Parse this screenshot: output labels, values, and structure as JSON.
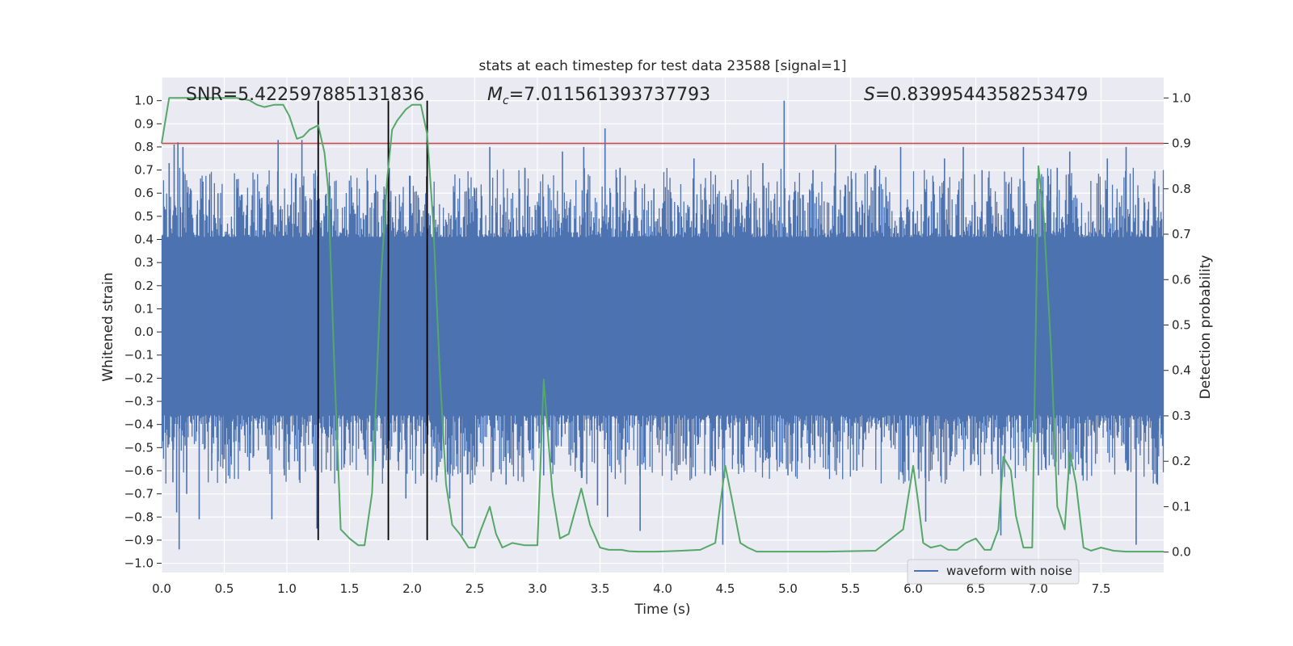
{
  "chart_data": {
    "type": "line",
    "title": "stats at each timestep for test data 23588 [signal=1]",
    "xlabel": "Time (s)",
    "ylabel": "Whitened strain",
    "y2label": "Detection probability",
    "xlim": [
      0,
      8
    ],
    "ylim": [
      -1.04,
      1.1
    ],
    "y2lim": [
      -0.045,
      1.045
    ],
    "xticks": [
      0.0,
      0.5,
      1.0,
      1.5,
      2.0,
      2.5,
      3.0,
      3.5,
      4.0,
      4.5,
      5.0,
      5.5,
      6.0,
      6.5,
      7.0,
      7.5
    ],
    "xtick_labels": [
      "0.0",
      "0.5",
      "1.0",
      "1.5",
      "2.0",
      "2.5",
      "3.0",
      "3.5",
      "4.0",
      "4.5",
      "5.0",
      "5.5",
      "6.0",
      "6.5",
      "7.0",
      "7.5"
    ],
    "yticks": [
      -1.0,
      -0.9,
      -0.8,
      -0.7,
      -0.6,
      -0.5,
      -0.4,
      -0.3,
      -0.2,
      -0.1,
      0.0,
      0.1,
      0.2,
      0.3,
      0.4,
      0.5,
      0.6,
      0.7,
      0.8,
      0.9,
      1.0
    ],
    "ytick_labels": [
      "−1.0",
      "−0.9",
      "−0.8",
      "−0.7",
      "−0.6",
      "−0.5",
      "−0.4",
      "−0.3",
      "−0.2",
      "−0.1",
      "0.0",
      "0.1",
      "0.2",
      "0.3",
      "0.4",
      "0.5",
      "0.6",
      "0.7",
      "0.8",
      "0.9",
      "1.0"
    ],
    "y2ticks": [
      0.0,
      0.1,
      0.2,
      0.3,
      0.4,
      0.5,
      0.6,
      0.7,
      0.8,
      0.9,
      1.0
    ],
    "y2tick_labels": [
      "0.0",
      "0.1",
      "0.2",
      "0.3",
      "0.4",
      "0.5",
      "0.6",
      "0.7",
      "0.8",
      "0.9",
      "1.0"
    ],
    "annotations": {
      "snr": "SNR=5.422597885131836",
      "mc_symbol": "M",
      "mc_subscript": "c",
      "mc_value": "=7.011561393737793",
      "s_symbol": "S",
      "s_value": "=0.8399544358253479"
    },
    "threshold": {
      "axis": "right",
      "value": 0.9,
      "color": "#c44e52"
    },
    "vlines": [
      1.25,
      1.81,
      2.12
    ],
    "vline_color": "#000000",
    "vline_range": [
      -0.9,
      1.0
    ],
    "waveform": {
      "name": "waveform with noise",
      "color": "#4c72b0",
      "dense_envelope": [
        -0.36,
        0.41
      ],
      "spikes": [
        {
          "t": 0.03,
          "v": 0.53
        },
        {
          "t": 0.05,
          "v": -0.5
        },
        {
          "t": 0.06,
          "v": 0.73
        },
        {
          "t": 0.09,
          "v": -0.65
        },
        {
          "t": 0.1,
          "v": 0.81
        },
        {
          "t": 0.12,
          "v": -0.78
        },
        {
          "t": 0.13,
          "v": 0.82
        },
        {
          "t": 0.14,
          "v": -0.94
        },
        {
          "t": 0.17,
          "v": 0.8
        },
        {
          "t": 0.2,
          "v": -0.7
        },
        {
          "t": 0.23,
          "v": 0.62
        },
        {
          "t": 0.3,
          "v": -0.81
        },
        {
          "t": 0.33,
          "v": 0.65
        },
        {
          "t": 0.4,
          "v": -0.6
        },
        {
          "t": 0.45,
          "v": 0.6
        },
        {
          "t": 0.5,
          "v": -0.55
        },
        {
          "t": 0.6,
          "v": 0.66
        },
        {
          "t": 0.7,
          "v": -0.6
        },
        {
          "t": 0.8,
          "v": 0.58
        },
        {
          "t": 0.88,
          "v": -0.81
        },
        {
          "t": 0.93,
          "v": 0.83
        },
        {
          "t": 0.98,
          "v": -0.62
        },
        {
          "t": 1.03,
          "v": 0.55
        },
        {
          "t": 1.12,
          "v": 0.83
        },
        {
          "t": 1.24,
          "v": -0.85
        },
        {
          "t": 1.3,
          "v": 0.5
        },
        {
          "t": 1.4,
          "v": -0.6
        },
        {
          "t": 1.5,
          "v": 0.47
        },
        {
          "t": 1.63,
          "v": -0.55
        },
        {
          "t": 1.7,
          "v": 0.6
        },
        {
          "t": 1.79,
          "v": 0.62
        },
        {
          "t": 1.95,
          "v": -0.72
        },
        {
          "t": 2.05,
          "v": 0.58
        },
        {
          "t": 2.2,
          "v": -0.62
        },
        {
          "t": 2.3,
          "v": -0.72
        },
        {
          "t": 2.4,
          "v": -0.88
        },
        {
          "t": 2.5,
          "v": 0.62
        },
        {
          "t": 2.62,
          "v": 0.8
        },
        {
          "t": 2.75,
          "v": -0.66
        },
        {
          "t": 2.9,
          "v": 0.71
        },
        {
          "t": 3.05,
          "v": -0.62
        },
        {
          "t": 3.2,
          "v": 0.78
        },
        {
          "t": 3.37,
          "v": 0.8
        },
        {
          "t": 3.48,
          "v": -0.75
        },
        {
          "t": 3.54,
          "v": 0.88
        },
        {
          "t": 3.56,
          "v": -0.8
        },
        {
          "t": 3.66,
          "v": 0.71
        },
        {
          "t": 3.82,
          "v": -0.86
        },
        {
          "t": 3.93,
          "v": 0.62
        },
        {
          "t": 4.1,
          "v": -0.6
        },
        {
          "t": 4.25,
          "v": 0.75
        },
        {
          "t": 4.38,
          "v": -0.62
        },
        {
          "t": 4.48,
          "v": -0.92
        },
        {
          "t": 4.6,
          "v": 0.66
        },
        {
          "t": 4.8,
          "v": 0.73
        },
        {
          "t": 4.97,
          "v": 1.0
        },
        {
          "t": 5.0,
          "v": -0.62
        },
        {
          "t": 5.2,
          "v": 0.7
        },
        {
          "t": 5.38,
          "v": 0.81
        },
        {
          "t": 5.55,
          "v": -0.6
        },
        {
          "t": 5.7,
          "v": 0.72
        },
        {
          "t": 5.9,
          "v": 0.8
        },
        {
          "t": 6.1,
          "v": -0.82
        },
        {
          "t": 6.25,
          "v": 0.75
        },
        {
          "t": 6.4,
          "v": 0.8
        },
        {
          "t": 6.55,
          "v": 0.7
        },
        {
          "t": 6.7,
          "v": -0.88
        },
        {
          "t": 6.88,
          "v": 0.8
        },
        {
          "t": 7.0,
          "v": -0.62
        },
        {
          "t": 7.15,
          "v": 0.71
        },
        {
          "t": 7.25,
          "v": 0.78
        },
        {
          "t": 7.35,
          "v": -0.62
        },
        {
          "t": 7.55,
          "v": 0.75
        },
        {
          "t": 7.7,
          "v": 0.8
        },
        {
          "t": 7.78,
          "v": -0.92
        },
        {
          "t": 7.95,
          "v": -0.66
        }
      ]
    },
    "detection_probability": {
      "axis": "right",
      "color": "#55a868",
      "x": [
        0.0,
        0.06,
        0.12,
        0.2,
        0.3,
        0.4,
        0.5,
        0.6,
        0.7,
        0.76,
        0.82,
        0.9,
        0.97,
        1.02,
        1.08,
        1.13,
        1.18,
        1.25,
        1.3,
        1.33,
        1.38,
        1.43,
        1.5,
        1.57,
        1.62,
        1.68,
        1.75,
        1.8,
        1.84,
        1.88,
        1.95,
        2.0,
        2.07,
        2.12,
        2.17,
        2.22,
        2.27,
        2.32,
        2.38,
        2.45,
        2.5,
        2.55,
        2.62,
        2.67,
        2.72,
        2.8,
        2.9,
        3.0,
        3.05,
        3.12,
        3.18,
        3.25,
        3.3,
        3.35,
        3.42,
        3.5,
        3.57,
        3.62,
        3.67,
        3.73,
        3.8,
        3.88,
        3.95,
        4.05,
        4.15,
        4.3,
        4.42,
        4.5,
        4.55,
        4.62,
        4.68,
        4.75,
        4.85,
        5.0,
        5.3,
        5.7,
        5.92,
        6.0,
        6.04,
        6.08,
        6.14,
        6.22,
        6.28,
        6.35,
        6.42,
        6.5,
        6.57,
        6.62,
        6.68,
        6.72,
        6.78,
        6.82,
        6.88,
        6.95,
        7.0,
        7.04,
        7.1,
        7.15,
        7.21,
        7.25,
        7.3,
        7.36,
        7.42,
        7.5,
        7.6,
        7.7,
        7.8,
        8.0
      ],
      "y": [
        0.9,
        1.0,
        1.0,
        1.0,
        1.0,
        1.0,
        1.0,
        1.0,
        0.995,
        0.985,
        0.98,
        0.985,
        0.985,
        0.96,
        0.91,
        0.915,
        0.93,
        0.94,
        0.88,
        0.8,
        0.4,
        0.05,
        0.03,
        0.015,
        0.015,
        0.13,
        0.6,
        0.82,
        0.93,
        0.95,
        0.975,
        0.985,
        0.985,
        0.92,
        0.72,
        0.4,
        0.15,
        0.06,
        0.04,
        0.01,
        0.01,
        0.05,
        0.1,
        0.04,
        0.01,
        0.02,
        0.015,
        0.015,
        0.38,
        0.13,
        0.03,
        0.04,
        0.09,
        0.14,
        0.06,
        0.01,
        0.005,
        0.005,
        0.005,
        0.002,
        0.001,
        0.001,
        0.001,
        0.002,
        0.003,
        0.005,
        0.02,
        0.19,
        0.12,
        0.02,
        0.01,
        0.001,
        0.001,
        0.001,
        0.001,
        0.003,
        0.05,
        0.19,
        0.11,
        0.02,
        0.01,
        0.015,
        0.005,
        0.005,
        0.02,
        0.03,
        0.005,
        0.005,
        0.05,
        0.21,
        0.18,
        0.08,
        0.01,
        0.01,
        0.85,
        0.75,
        0.45,
        0.1,
        0.05,
        0.22,
        0.15,
        0.01,
        0.003,
        0.01,
        0.003,
        0.001,
        0.001,
        0.001
      ]
    },
    "legend": {
      "label": "waveform with noise",
      "placement": "lower-right"
    },
    "grid": true
  }
}
